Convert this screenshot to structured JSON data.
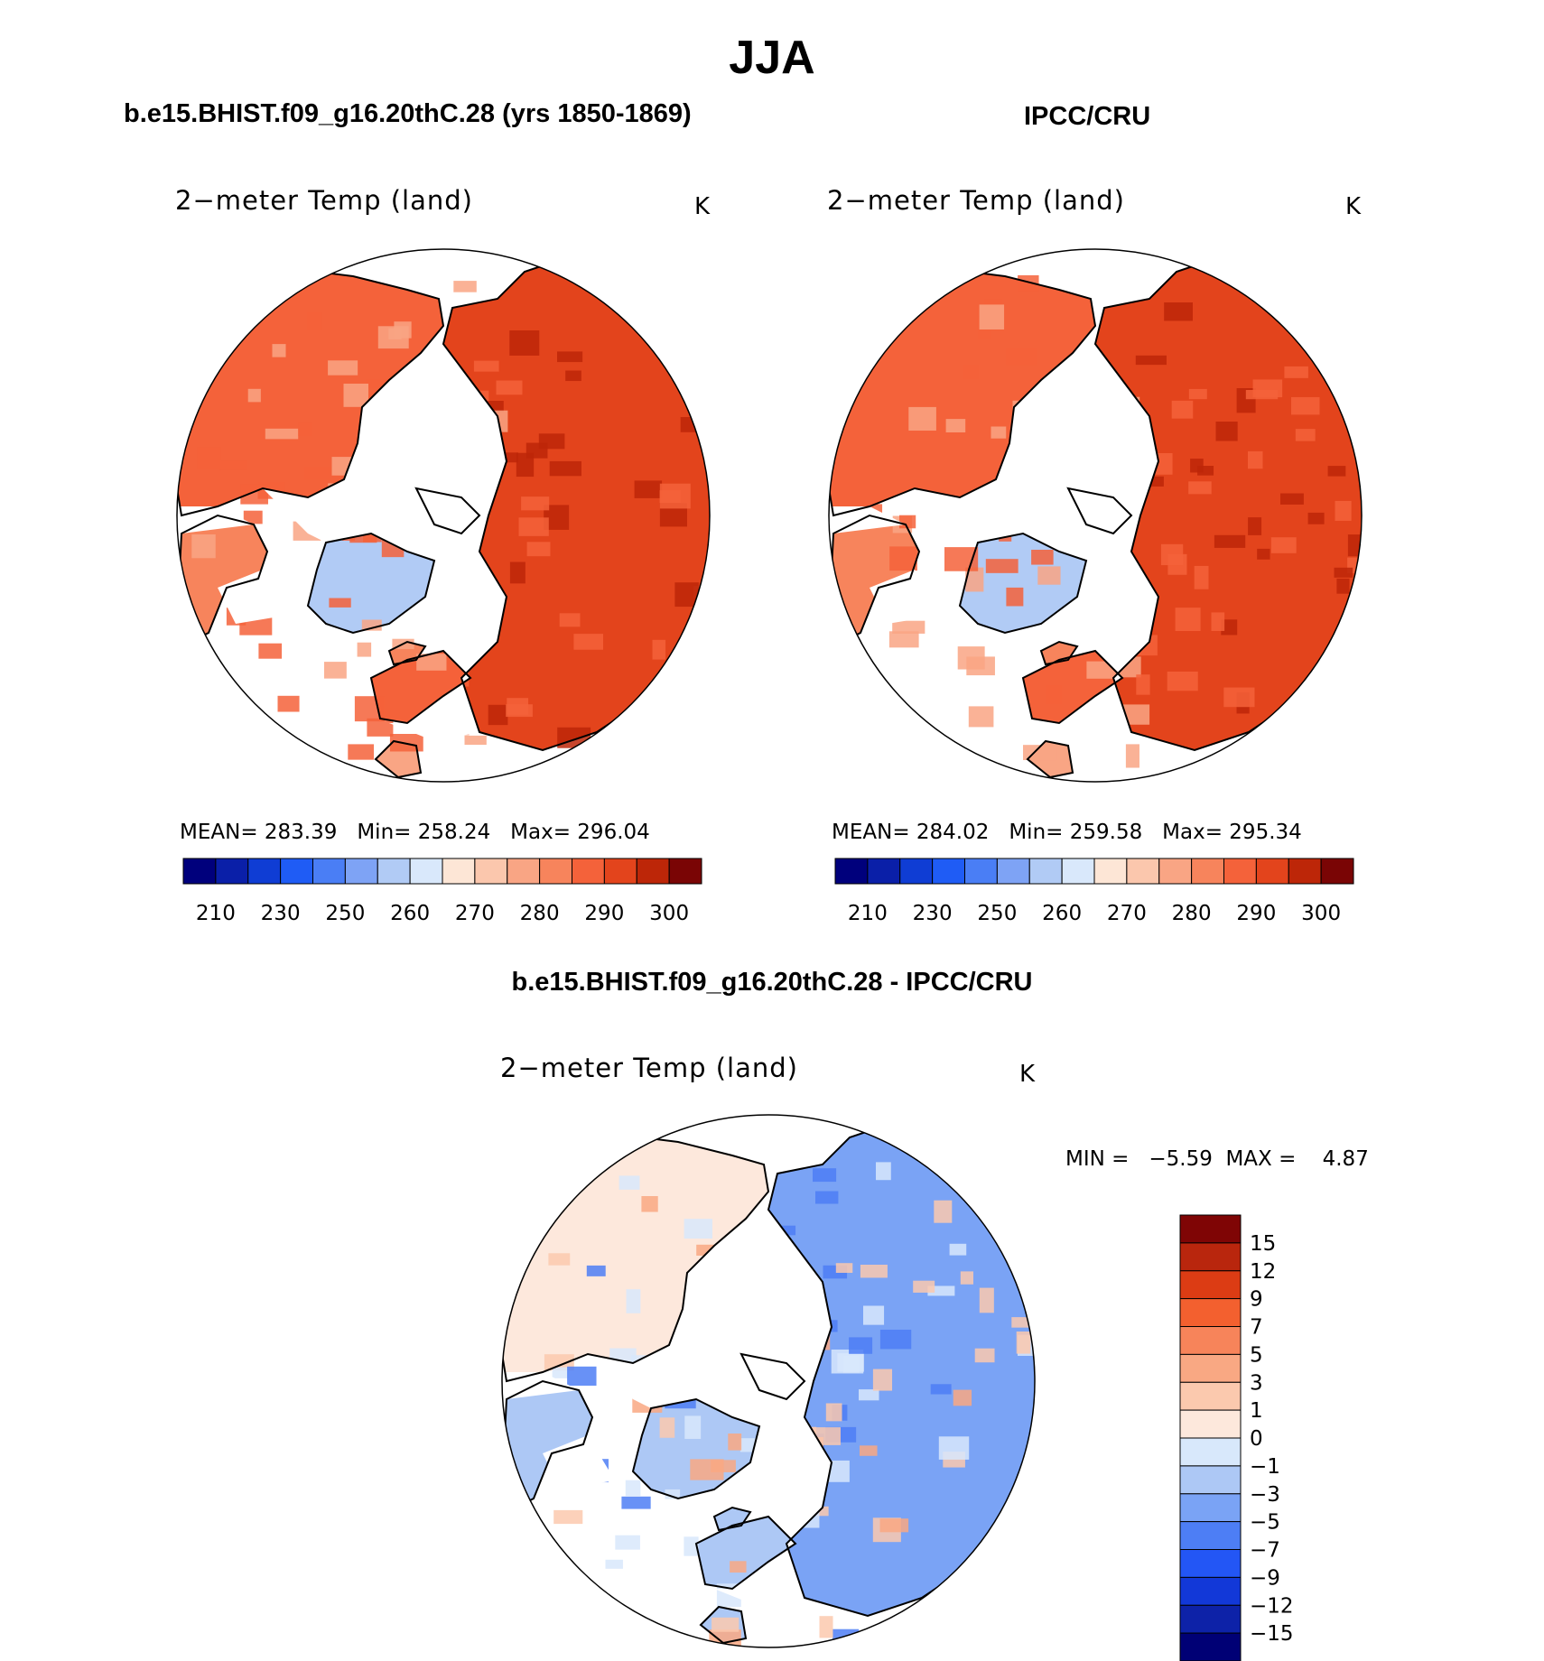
{
  "title": "JJA",
  "colors": {
    "abs_scale": [
      "#00007c",
      "#0a1fa8",
      "#0f3dd4",
      "#1f5cf5",
      "#4a7ef5",
      "#7ea3f5",
      "#b1cbf5",
      "#d9e8fb",
      "#fde6d6",
      "#fbc7ad",
      "#f9a584",
      "#f7845c",
      "#f4623a",
      "#e3441c",
      "#bd2608",
      "#7a0505"
    ],
    "diff_scale": [
      "#000075",
      "#0d22a8",
      "#1238d8",
      "#2356f5",
      "#4d7ef5",
      "#7aa3f5",
      "#adc8f5",
      "#d8e8fb",
      "#fde8dc",
      "#fbc9ae",
      "#f9a883",
      "#f7845a",
      "#f3602f",
      "#dc3c14",
      "#b9260d",
      "#7f0505"
    ]
  },
  "panels": {
    "model": {
      "title": "b.e15.BHIST.f09_g16.20thC.28 (yrs 1850-1869)",
      "var_label": "2−meter Temp (land)",
      "units": "K",
      "stats": {
        "mean": "283.39",
        "min": "258.24",
        "max": "296.04"
      }
    },
    "obs": {
      "title": "IPCC/CRU",
      "var_label": "2−meter Temp (land)",
      "units": "K",
      "stats": {
        "mean": "284.02",
        "min": "259.58",
        "max": "295.34"
      }
    },
    "diff": {
      "title": "b.e15.BHIST.f09_g16.20thC.28 - IPCC/CRU",
      "var_label": "2−meter Temp (land)",
      "units": "K",
      "min_max_label": "MIN =   −5.59  MAX =    4.87"
    }
  },
  "stat_labels": {
    "mean": "MEAN=",
    "min": "Min=",
    "max": "Max="
  },
  "chart_data": [
    {
      "type": "heatmap",
      "title": "b.e15.BHIST.f09_g16.20thC.28 (yrs 1850-1869)",
      "variable": "2-meter Temp (land)",
      "units": "K",
      "projection": "north polar stereographic",
      "stats": {
        "mean": 283.39,
        "min": 258.24,
        "max": 296.04
      },
      "colorbar_ticks": [
        "210",
        "230",
        "250",
        "260",
        "270",
        "280",
        "290",
        "300"
      ],
      "colorbar_levels": [
        200,
        210,
        220,
        230,
        240,
        250,
        255,
        260,
        265,
        270,
        275,
        280,
        285,
        290,
        295,
        300
      ]
    },
    {
      "type": "heatmap",
      "title": "IPCC/CRU",
      "variable": "2-meter Temp (land)",
      "units": "K",
      "projection": "north polar stereographic",
      "stats": {
        "mean": 284.02,
        "min": 259.58,
        "max": 295.34
      },
      "colorbar_ticks": [
        "210",
        "230",
        "250",
        "260",
        "270",
        "280",
        "290",
        "300"
      ],
      "colorbar_levels": [
        200,
        210,
        220,
        230,
        240,
        250,
        255,
        260,
        265,
        270,
        275,
        280,
        285,
        290,
        295,
        300
      ]
    },
    {
      "type": "heatmap",
      "title": "b.e15.BHIST.f09_g16.20thC.28 - IPCC/CRU",
      "variable": "2-meter Temp (land)",
      "units": "K",
      "projection": "north polar stereographic",
      "stats": {
        "min": -5.59,
        "max": 4.87
      },
      "colorbar_ticks": [
        "15",
        "12",
        "9",
        "7",
        "5",
        "3",
        "1",
        "0",
        "−1",
        "−3",
        "−5",
        "−7",
        "−9",
        "−12",
        "−15"
      ]
    }
  ]
}
